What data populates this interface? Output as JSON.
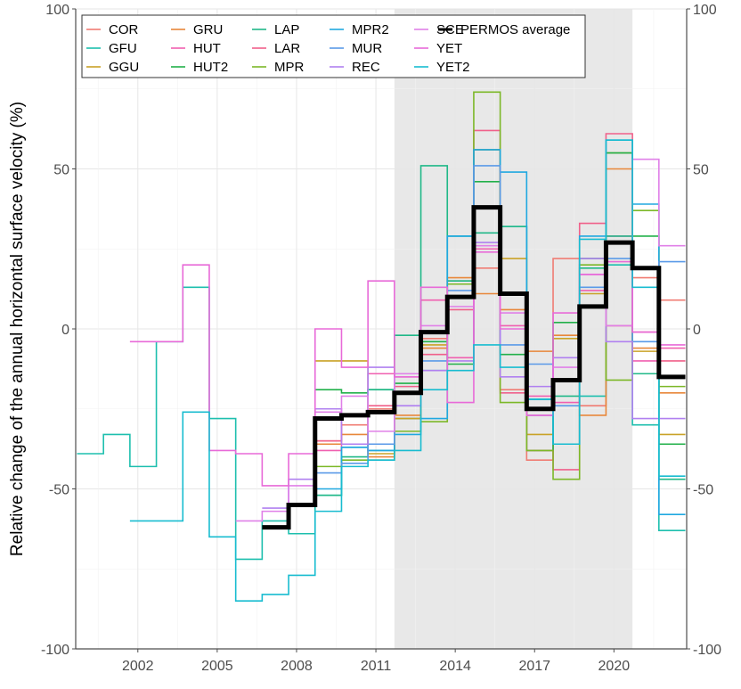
{
  "chart_data": {
    "type": "line",
    "step": true,
    "title": "",
    "xlabel": "",
    "ylabel": "Relative change of the annual horizontal surface velocity (%)",
    "xlim": [
      1999.65,
      2022.75
    ],
    "ylim": [
      -100,
      100
    ],
    "xticks": [
      2002,
      2005,
      2008,
      2011,
      2014,
      2017,
      2020
    ],
    "yticks": [
      -100,
      -50,
      0,
      50,
      100
    ],
    "secondary_y_axis": true,
    "grid": true,
    "shaded_period": [
      2011.7,
      2020.7
    ],
    "shade_color": "#e8e8e8",
    "legend_position": "top-left",
    "step_width_years": 1,
    "series": [
      {
        "name": "COR",
        "color": "#F07C73",
        "start": 2008.7,
        "values": [
          -35,
          -30,
          -25,
          -28,
          -3,
          10,
          19,
          -19,
          -41,
          22,
          -24,
          1,
          16,
          9
        ]
      },
      {
        "name": "GFU",
        "color": "#1DBFAE",
        "start": 1999.7,
        "values": [
          -39,
          -33,
          -43,
          -4,
          13,
          -28,
          -72,
          -60,
          -64,
          -52,
          -37,
          -38,
          -28,
          -13,
          29,
          56,
          32,
          -27,
          -36,
          -21,
          20,
          -30,
          -63
        ]
      },
      {
        "name": "GGU",
        "color": "#C9A227",
        "start": 2008.7,
        "values": [
          -10,
          -10,
          -39,
          -28,
          -5,
          15,
          56,
          22,
          -33,
          -3,
          11,
          55,
          -7,
          -33
        ]
      },
      {
        "name": "GRU",
        "color": "#E8873A",
        "start": 2008.7,
        "values": [
          -36,
          -33,
          -40,
          -27,
          -6,
          16,
          11,
          6,
          -7,
          -2,
          -27,
          50,
          -6,
          -20
        ]
      },
      {
        "name": "HUT",
        "color": "#F060B0",
        "start": 2008.7,
        "values": [
          -38,
          -36,
          -14,
          -15,
          9,
          -9,
          25,
          1,
          -21,
          -23,
          12,
          29,
          -10,
          -6
        ]
      },
      {
        "name": "HUT2",
        "color": "#22B04A",
        "start": 2008.7,
        "values": [
          -19,
          -20,
          -19,
          -17,
          -4,
          -11,
          46,
          -8,
          -38,
          2,
          22,
          55,
          29,
          -36
        ]
      },
      {
        "name": "LAP",
        "color": "#20B888",
        "start": 2008.7,
        "values": [
          -52,
          -40,
          -19,
          -2,
          51,
          15,
          30,
          32,
          -22,
          -21,
          19,
          29,
          -14,
          -47
        ]
      },
      {
        "name": "LAR",
        "color": "#F0608A",
        "start": 2008.7,
        "values": [
          -35,
          -27,
          -24,
          -18,
          -8,
          6,
          62,
          -20,
          -38,
          -44,
          33,
          61,
          -1,
          -10
        ]
      },
      {
        "name": "MPR",
        "color": "#7CB828",
        "start": 2008.7,
        "values": [
          -43,
          -41,
          -41,
          -32,
          -29,
          14,
          74,
          -23,
          -38,
          -47,
          20,
          -16,
          37,
          -18
        ]
      },
      {
        "name": "MPR2",
        "color": "#20A8E0",
        "start": 2008.7,
        "values": [
          -50,
          -37,
          -38,
          -33,
          -28,
          29,
          56,
          49,
          -22,
          -36,
          29,
          59,
          39,
          -58
        ]
      },
      {
        "name": "MUR",
        "color": "#5A9AE8",
        "start": 2008.7,
        "values": [
          -45,
          -42,
          -36,
          -20,
          -10,
          12,
          51,
          -5,
          -11,
          -24,
          13,
          22,
          -4,
          21
        ]
      },
      {
        "name": "REC",
        "color": "#B080F0",
        "start": 2006.7,
        "values": [
          -56,
          -47,
          -25,
          -36,
          -12,
          -24,
          -13,
          -10,
          27,
          -15,
          -18,
          -9,
          22,
          -4,
          -28,
          -28
        ]
      },
      {
        "name": "SCE",
        "color": "#E080E8",
        "start": 2005.7,
        "values": [
          -60,
          -57,
          -49,
          -26,
          -21,
          -32,
          -14,
          1,
          7,
          26,
          5,
          -27,
          -12,
          17,
          1,
          53,
          26
        ]
      },
      {
        "name": "YET",
        "color": "#E86AD8",
        "start": 2001.7,
        "values": [
          -4,
          -4,
          20,
          -38,
          -39,
          -49,
          -39,
          0,
          -12,
          15,
          -15,
          13,
          -23,
          24,
          0,
          -27,
          5,
          17,
          21,
          -1,
          -5
        ]
      },
      {
        "name": "YET2",
        "color": "#18BCD0",
        "start": 2001.7,
        "values": [
          -60,
          -60,
          -26,
          -65,
          -85,
          -83,
          -77,
          -57,
          -43,
          -41,
          -38,
          -19,
          -13,
          -5,
          -12,
          -22,
          -36,
          28,
          59,
          13,
          -46
        ]
      },
      {
        "name": "PERMOS average",
        "color": "#000000",
        "start": 2006.7,
        "values": [
          -62,
          -55,
          -28,
          -27,
          -26,
          -20,
          -1,
          10,
          38,
          11,
          -25,
          -16,
          7,
          27,
          19,
          -15
        ]
      }
    ]
  }
}
